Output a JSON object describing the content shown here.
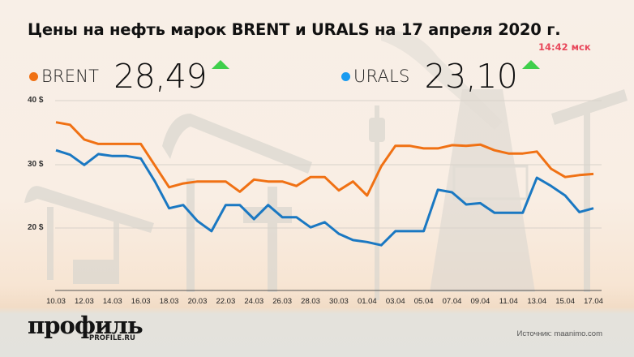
{
  "header": {
    "title": "Цены на нефть марок BRENT и URALS на 17 апреля 2020 г.",
    "time": "14:42 мск"
  },
  "tickers": {
    "brent": {
      "name": "BRENT",
      "value": "28,49",
      "trend": "up-arrow-icon",
      "color": "#f07114"
    },
    "urals": {
      "name": "URALS",
      "value": "23,10",
      "trend": "up-arrow-icon",
      "color": "#1a9bf0"
    }
  },
  "colors": {
    "brent_line": "#f07114",
    "urals_line": "#1a78c2",
    "up_arrow": "#3fcf4b",
    "time_red": "#e8475a"
  },
  "footer": {
    "logo": "профиль",
    "logo_sub": "PROFILE.RU",
    "source": "Источник: maanimo.com"
  },
  "chart_data": {
    "type": "line",
    "title": "Цены на нефть марок BRENT и URALS на 17 апреля 2020 г.",
    "xlabel": "",
    "ylabel": "",
    "ylim": [
      15,
      40
    ],
    "yticks": [
      "40 $",
      "30 $",
      "20 $"
    ],
    "ytick_values": [
      40,
      30,
      20
    ],
    "grid": true,
    "legend_position": "top",
    "x": [
      "10.03",
      "11.03",
      "12.03",
      "13.03",
      "14.03",
      "15.03",
      "16.03",
      "17.03",
      "18.03",
      "19.03",
      "20.03",
      "21.03",
      "22.03",
      "23.03",
      "24.03",
      "25.03",
      "26.03",
      "27.03",
      "28.03",
      "29.03",
      "30.03",
      "31.03",
      "01.04",
      "02.04",
      "03.04",
      "04.04",
      "05.04",
      "06.04",
      "07.04",
      "08.04",
      "09.04",
      "10.04",
      "11.04",
      "12.04",
      "13.04",
      "14.04",
      "15.04",
      "16.04",
      "17.04"
    ],
    "xtick_labels": [
      "10.03",
      "12.03",
      "14.03",
      "16.03",
      "18.03",
      "20.03",
      "22.03",
      "24.03",
      "26.03",
      "28.03",
      "30.03",
      "01.04",
      "03.04",
      "05.04",
      "07.04",
      "09.04",
      "11.04",
      "13.04",
      "15.04",
      "17.04"
    ],
    "series": [
      {
        "name": "BRENT",
        "color": "#f07114",
        "values": [
          36.6,
          36.2,
          33.9,
          33.2,
          33.2,
          33.2,
          33.2,
          29.8,
          26.4,
          27.0,
          27.3,
          27.3,
          27.3,
          25.7,
          27.6,
          27.3,
          27.3,
          26.6,
          28.0,
          28.0,
          25.9,
          27.3,
          25.1,
          29.7,
          32.9,
          32.9,
          32.5,
          32.5,
          33.0,
          32.9,
          33.1,
          32.2,
          31.7,
          31.7,
          32.0,
          29.3,
          28.0,
          28.3,
          28.49
        ]
      },
      {
        "name": "URALS",
        "color": "#1a78c2",
        "values": [
          32.2,
          31.5,
          29.9,
          31.6,
          31.3,
          31.3,
          30.9,
          27.3,
          23.1,
          23.6,
          21.1,
          19.5,
          23.6,
          23.6,
          21.4,
          23.6,
          21.7,
          21.7,
          20.1,
          20.9,
          19.1,
          18.1,
          17.8,
          17.3,
          19.5,
          19.5,
          19.5,
          26.0,
          25.6,
          23.7,
          23.9,
          22.4,
          22.4,
          22.4,
          27.9,
          26.6,
          25.1,
          22.5,
          23.1
        ]
      }
    ]
  }
}
